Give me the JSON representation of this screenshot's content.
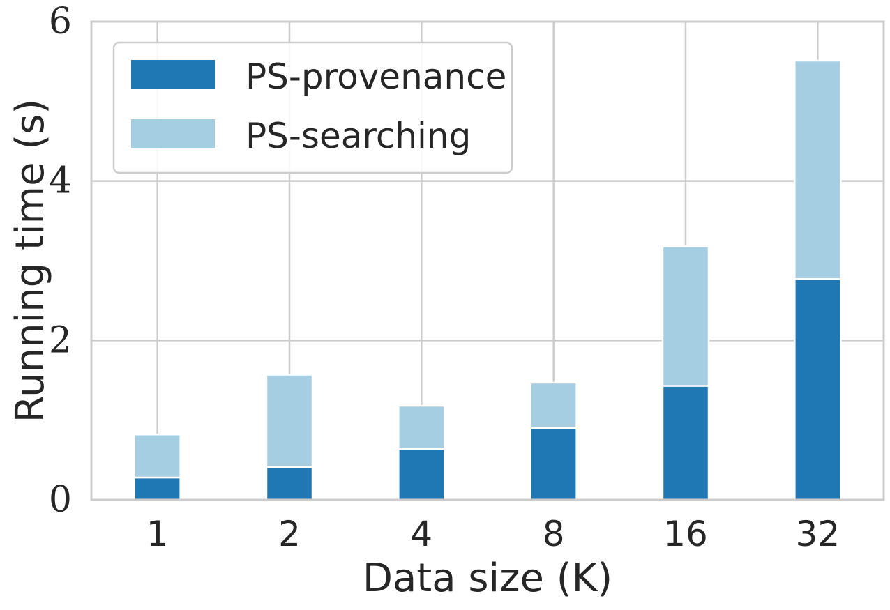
{
  "chart_data": {
    "type": "bar",
    "stacked": true,
    "categories": [
      "1",
      "2",
      "4",
      "8",
      "16",
      "32"
    ],
    "series": [
      {
        "name": "PS-provenance",
        "color": "#1f77b4",
        "values": [
          0.28,
          0.41,
          0.64,
          0.9,
          1.43,
          2.77
        ]
      },
      {
        "name": "PS-searching",
        "color": "#a6cee3",
        "values": [
          0.54,
          1.16,
          0.54,
          0.57,
          1.75,
          2.74
        ]
      }
    ],
    "title": "",
    "xlabel": "Data size (K)",
    "ylabel": "Running time (s)",
    "ylim": [
      0,
      6
    ],
    "yticks": [
      "0",
      "2",
      "4",
      "6"
    ],
    "grid": true,
    "legend_position": "top-left"
  }
}
